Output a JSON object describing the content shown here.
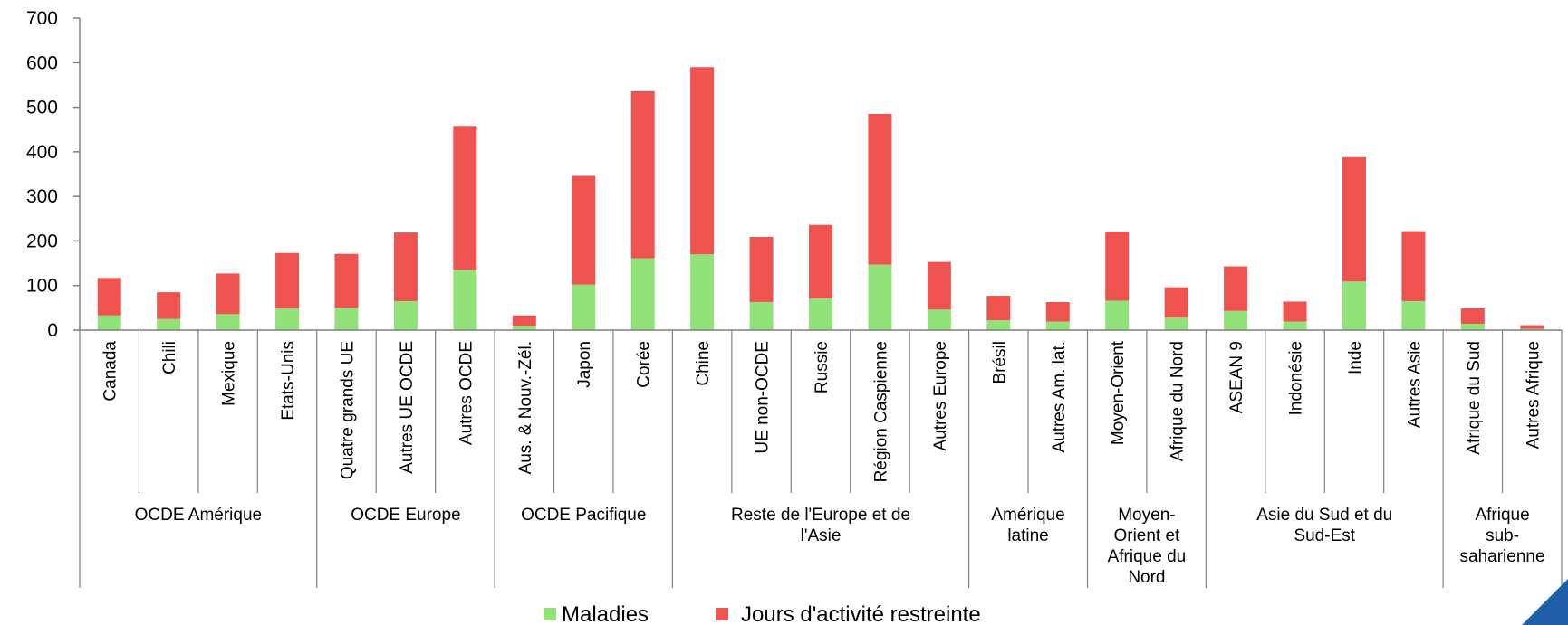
{
  "chart_data": {
    "type": "bar",
    "stacked": true,
    "ylim": [
      0,
      700
    ],
    "yticks": [
      "0",
      "100",
      "200",
      "300",
      "400",
      "500",
      "600",
      "700"
    ],
    "categories": [
      "Canada",
      "Chili",
      "Mexique",
      "Etats-Unis",
      "Quatre grands UE",
      "Autres UE OCDE",
      "Autres OCDE",
      "Aus. & Nouv.-Zél.",
      "Japon",
      "Corée",
      "Chine",
      "UE non-OCDE",
      "Russie",
      "Région Caspienne",
      "Autres Europe",
      "Brésil",
      "Autres Am. lat.",
      "Moyen-Orient",
      "Afrique du Nord",
      "ASEAN 9",
      "Indonésie",
      "Inde",
      "Autres Asie",
      "Afrique du Sud",
      "Autres Afrique"
    ],
    "groups": [
      {
        "label": "OCDE Amérique",
        "lines": [
          "OCDE Amérique"
        ],
        "count": 4
      },
      {
        "label": "OCDE Europe",
        "lines": [
          "OCDE Europe"
        ],
        "count": 3
      },
      {
        "label": "OCDE Pacifique",
        "lines": [
          "OCDE Pacifique"
        ],
        "count": 3
      },
      {
        "label": "Reste de l'Europe et de l'Asie",
        "lines": [
          "Reste de l'Europe et de",
          "l'Asie"
        ],
        "count": 5
      },
      {
        "label": "Amérique latine",
        "lines": [
          "Amérique",
          "latine"
        ],
        "count": 2
      },
      {
        "label": "Moyen-Orient et Afrique du Nord",
        "lines": [
          "Moyen-",
          "Orient et",
          "Afrique du",
          "Nord"
        ],
        "count": 2
      },
      {
        "label": "Asie du Sud et du Sud-Est",
        "lines": [
          "Asie du Sud et du",
          "Sud-Est"
        ],
        "count": 4
      },
      {
        "label": "Afrique sub-saharienne",
        "lines": [
          "Afrique",
          "sub-",
          "saharienne"
        ],
        "count": 2
      }
    ],
    "series": [
      {
        "name": "Maladies",
        "color": "#92e27a",
        "values": [
          33,
          25,
          36,
          49,
          50,
          65,
          135,
          10,
          102,
          161,
          170,
          63,
          71,
          147,
          46,
          22,
          19,
          66,
          28,
          43,
          19,
          109,
          65,
          14,
          3
        ]
      },
      {
        "name": "Jours d'activité restreinte",
        "color": "#ef5350",
        "values": [
          84,
          60,
          91,
          124,
          121,
          154,
          323,
          23,
          244,
          375,
          420,
          146,
          165,
          338,
          107,
          55,
          44,
          155,
          68,
          100,
          45,
          279,
          157,
          35,
          8
        ]
      }
    ],
    "grid": false,
    "legend_position": "bottom"
  },
  "colors": {
    "axis": "#7f7f7f",
    "corner_accent": "#1f5fa8"
  }
}
